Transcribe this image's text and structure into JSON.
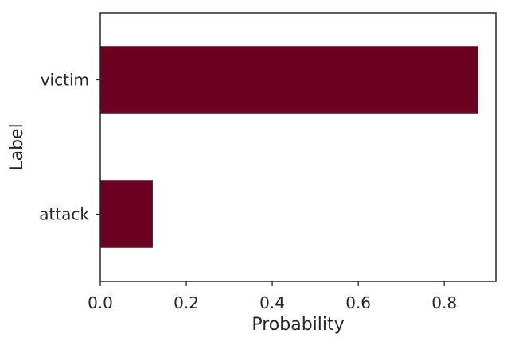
{
  "chart_data": {
    "type": "bar",
    "orientation": "horizontal",
    "categories": [
      "attack",
      "victim"
    ],
    "values": [
      0.122,
      0.878
    ],
    "xlabel": "Probability",
    "ylabel": "Label",
    "xlim": [
      0,
      0.92
    ],
    "xticks": [
      "0.0",
      "0.2",
      "0.4",
      "0.6",
      "0.8"
    ],
    "bar_color": "#6b0020",
    "grid": false,
    "legend": "none"
  }
}
